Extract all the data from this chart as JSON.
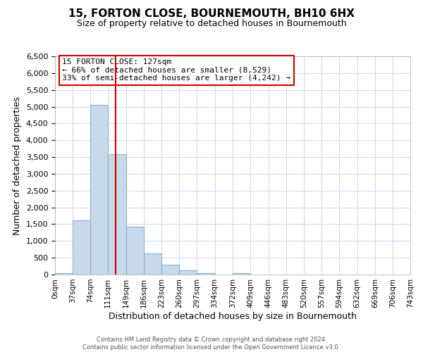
{
  "title": "15, FORTON CLOSE, BOURNEMOUTH, BH10 6HX",
  "subtitle": "Size of property relative to detached houses in Bournemouth",
  "xlabel": "Distribution of detached houses by size in Bournemouth",
  "ylabel": "Number of detached properties",
  "bar_color": "#c8d9ea",
  "bar_edge_color": "#7aaace",
  "background_color": "#ffffff",
  "grid_color": "#ccd8e8",
  "bin_labels": [
    "0sqm",
    "37sqm",
    "74sqm",
    "111sqm",
    "149sqm",
    "186sqm",
    "223sqm",
    "260sqm",
    "297sqm",
    "334sqm",
    "372sqm",
    "409sqm",
    "446sqm",
    "483sqm",
    "520sqm",
    "557sqm",
    "594sqm",
    "632sqm",
    "669sqm",
    "706sqm",
    "743sqm"
  ],
  "bar_values": [
    50,
    1620,
    5060,
    3580,
    1420,
    620,
    300,
    135,
    45,
    0,
    45,
    0,
    0,
    0,
    0,
    0,
    0,
    0,
    0,
    0
  ],
  "ylim": [
    0,
    6500
  ],
  "yticks": [
    0,
    500,
    1000,
    1500,
    2000,
    2500,
    3000,
    3500,
    4000,
    4500,
    5000,
    5500,
    6000,
    6500
  ],
  "vline_x": 127,
  "vline_color": "#cc0000",
  "bin_edges": [
    0,
    37,
    74,
    111,
    149,
    186,
    223,
    260,
    297,
    334,
    372,
    409,
    446,
    483,
    520,
    557,
    594,
    632,
    669,
    706,
    743
  ],
  "annotation_title": "15 FORTON CLOSE: 127sqm",
  "annotation_line1": "← 66% of detached houses are smaller (8,529)",
  "annotation_line2": "33% of semi-detached houses are larger (4,242) →",
  "annotation_box_color": "#ffffff",
  "annotation_box_edge": "#cc0000",
  "footer1": "Contains HM Land Registry data © Crown copyright and database right 2024.",
  "footer2": "Contains public sector information licensed under the Open Government Licence v3.0."
}
